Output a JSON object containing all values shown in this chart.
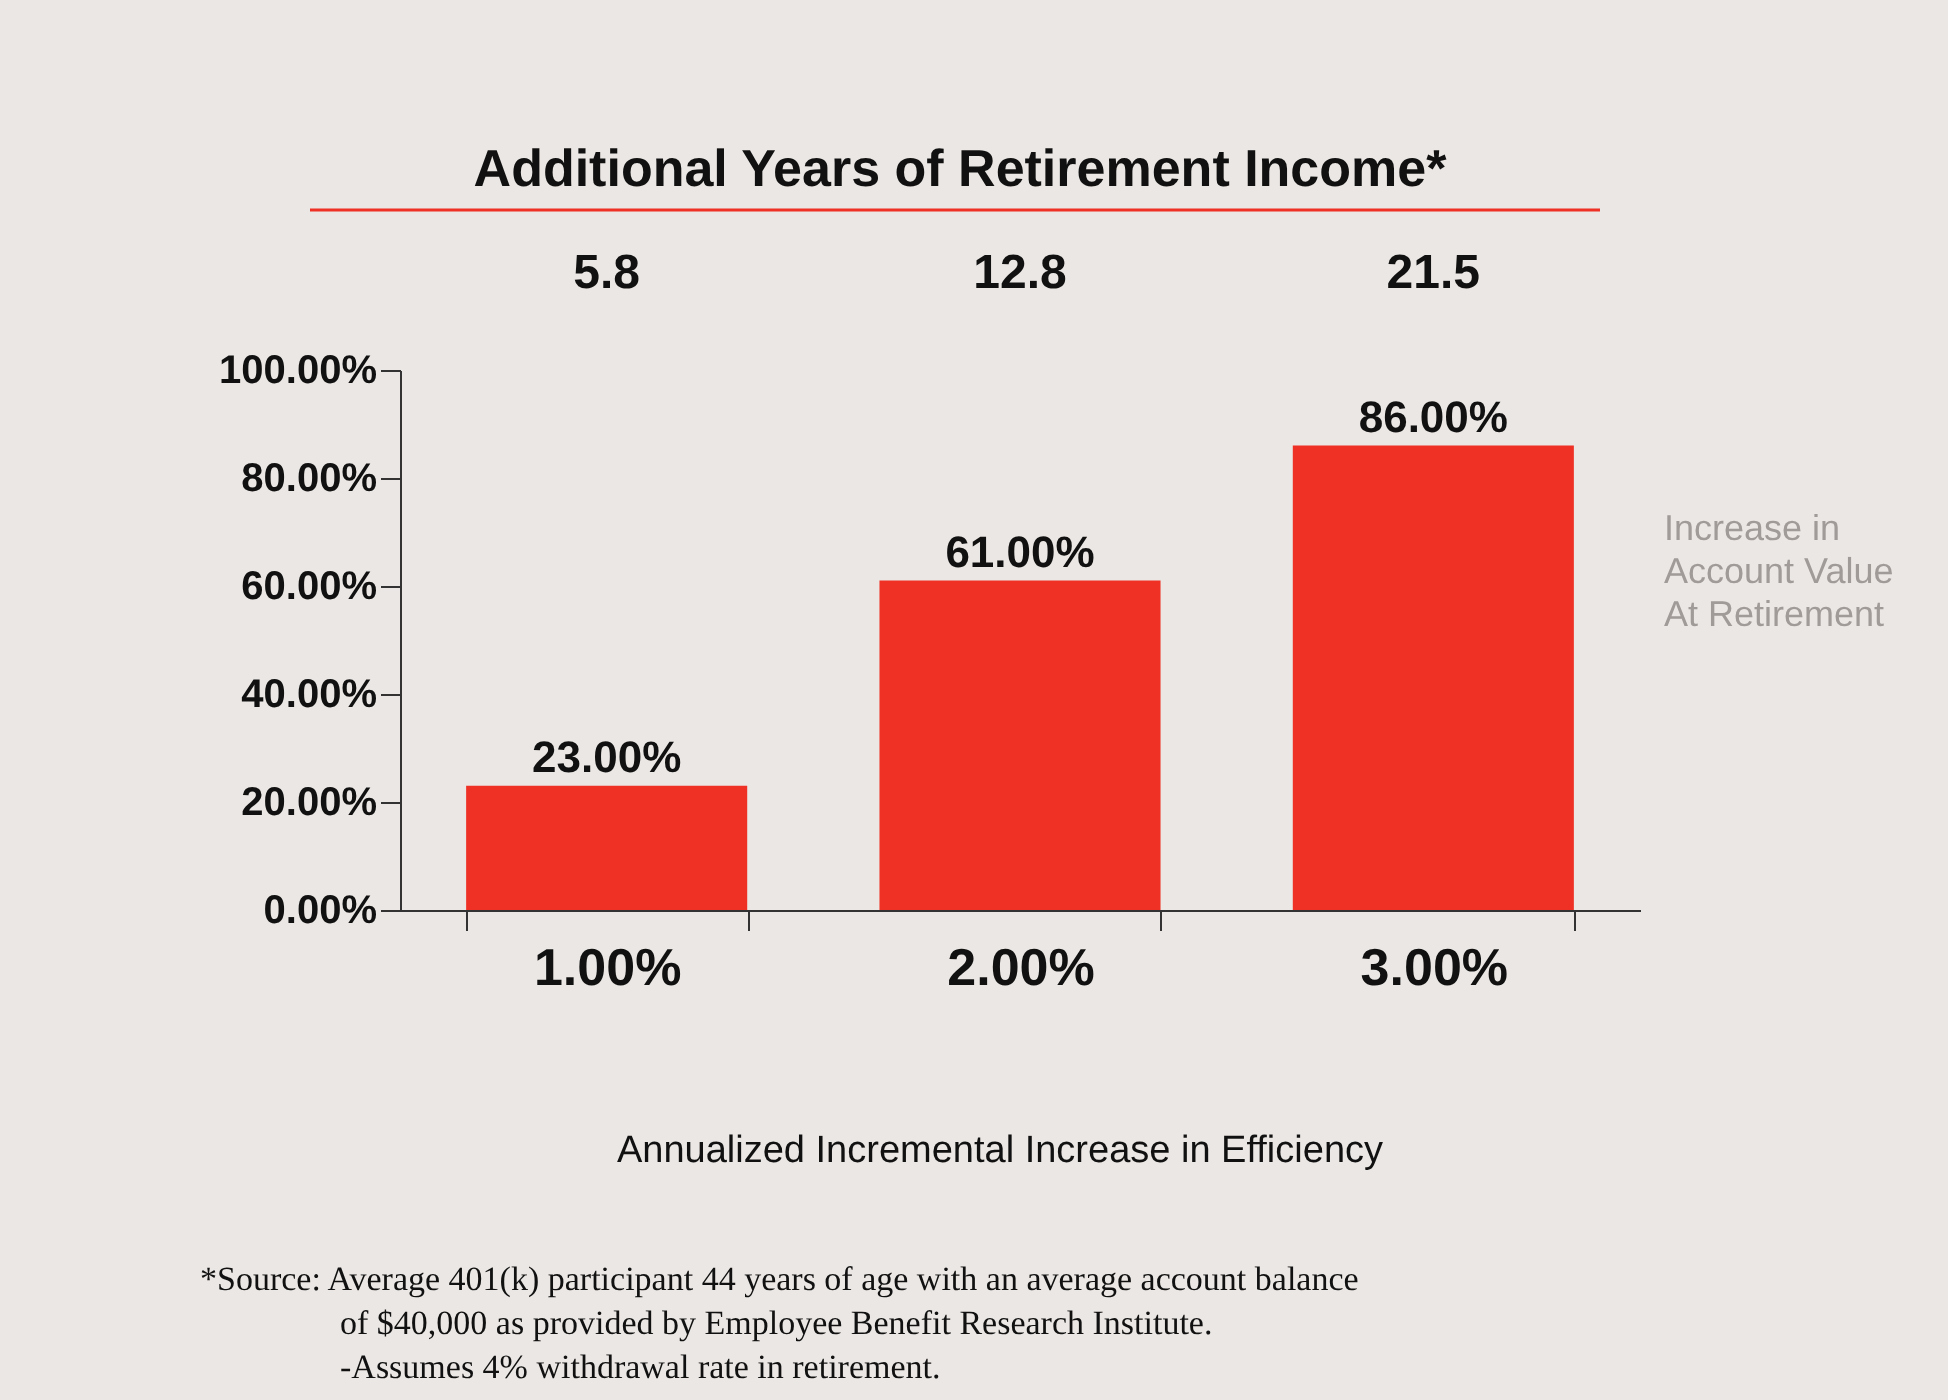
{
  "chart_data": {
    "type": "bar",
    "title": "Additional Years of Retirement Income*",
    "categories": [
      "1.00%",
      "2.00%",
      "3.00%"
    ],
    "values": [
      23,
      61,
      86
    ],
    "color": "#ee3124",
    "value_labels": [
      "23.00%",
      "61.00%",
      "86.00%"
    ],
    "ylim": [
      0,
      100
    ],
    "yticks": [
      {
        "value": 0,
        "label": "0.00%"
      },
      {
        "value": 20,
        "label": "20.00%"
      },
      {
        "value": 40,
        "label": "40.00%"
      },
      {
        "value": 60,
        "label": "60.00%"
      },
      {
        "value": 80,
        "label": "80.00%"
      },
      {
        "value": 100,
        "label": "100.00%"
      }
    ],
    "xlabel": "Annualized Incremental Increase in Efficiency",
    "ylabel": "Increase in\nAccount Value\nAt Retirement",
    "grid": false,
    "annotations": [
      "5.8",
      "12.8",
      "21.5",
      "*Source: Average 401(k) participant 44 years of age with an average account balance",
      "of $40,000 as provided by Employee Benefit Research Institute.",
      "-Assumes 4% withdrawal rate in retirement."
    ]
  }
}
